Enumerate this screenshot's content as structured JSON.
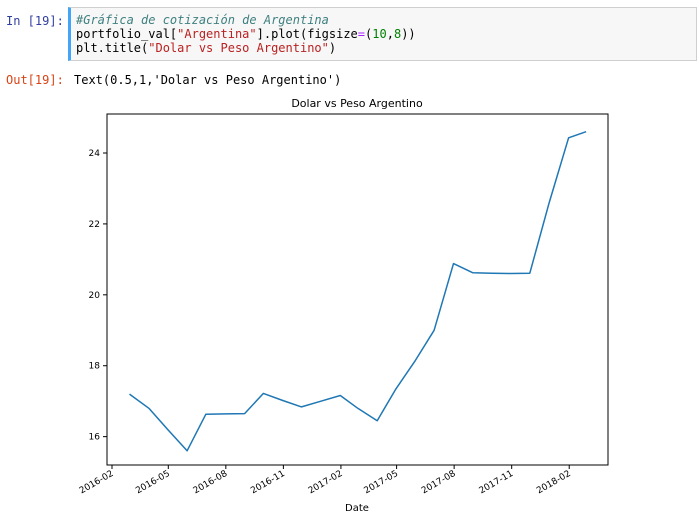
{
  "input_cell": {
    "prompt": "In [19]:",
    "code": {
      "comment": "#Gráfica de cotización de Argentina",
      "line2_var": "portfolio_val[",
      "line2_str": "\"Argentina\"",
      "line2_mid": "].plot(figsize",
      "line2_eq": "=",
      "line2_paren": "(",
      "line2_n1": "10",
      "line2_comma": ",",
      "line2_n2": "8",
      "line2_end": "))",
      "line3_func": "plt.title(",
      "line3_str": "\"Dolar vs Peso Argentino\"",
      "line3_end": ")"
    }
  },
  "output_cell": {
    "prompt": "Out[19]:",
    "text": "Text(0.5,1,'Dolar vs Peso Argentino')"
  },
  "chart_data": {
    "type": "line",
    "title": "Dolar vs Peso Argentino",
    "xlabel": "Date",
    "ylabel": "",
    "line_color": "#1f77b4",
    "ylim": [
      15.2,
      25.1
    ],
    "xlim": [
      "2016-01-24",
      "2018-04-04"
    ],
    "x_tick_labels": [
      "2016-02",
      "2016-05",
      "2016-08",
      "2016-11",
      "2017-02",
      "2017-05",
      "2017-08",
      "2017-11",
      "2018-02"
    ],
    "x_tick_dates": [
      "2016-02-01",
      "2016-05-01",
      "2016-08-01",
      "2016-11-01",
      "2017-02-01",
      "2017-05-01",
      "2017-08-01",
      "2017-11-01",
      "2018-02-01"
    ],
    "y_ticks": [
      16,
      18,
      20,
      22,
      24
    ],
    "y_tick_labels": [
      "16",
      "18",
      "20",
      "22",
      "24"
    ],
    "grid": false,
    "series": [
      {
        "x": [
          "2016-02-29",
          "2016-03-31",
          "2016-04-30",
          "2016-05-31",
          "2016-06-30",
          "2016-07-31",
          "2016-08-31",
          "2016-09-30",
          "2016-10-31",
          "2016-11-30",
          "2016-12-31",
          "2017-01-31",
          "2017-02-28",
          "2017-03-31",
          "2017-04-30",
          "2017-05-31",
          "2017-06-30",
          "2017-07-31",
          "2017-08-31",
          "2017-09-30",
          "2017-10-31",
          "2017-11-30",
          "2017-12-31",
          "2018-01-31",
          "2018-02-28"
        ],
        "values": [
          17.2,
          16.8,
          16.2,
          15.6,
          16.63,
          16.64,
          16.65,
          17.22,
          17.02,
          16.84,
          17.0,
          17.16,
          16.8,
          16.45,
          17.35,
          18.15,
          19.0,
          20.88,
          20.62,
          20.61,
          20.6,
          20.61,
          22.6,
          24.43,
          24.6
        ]
      }
    ]
  }
}
